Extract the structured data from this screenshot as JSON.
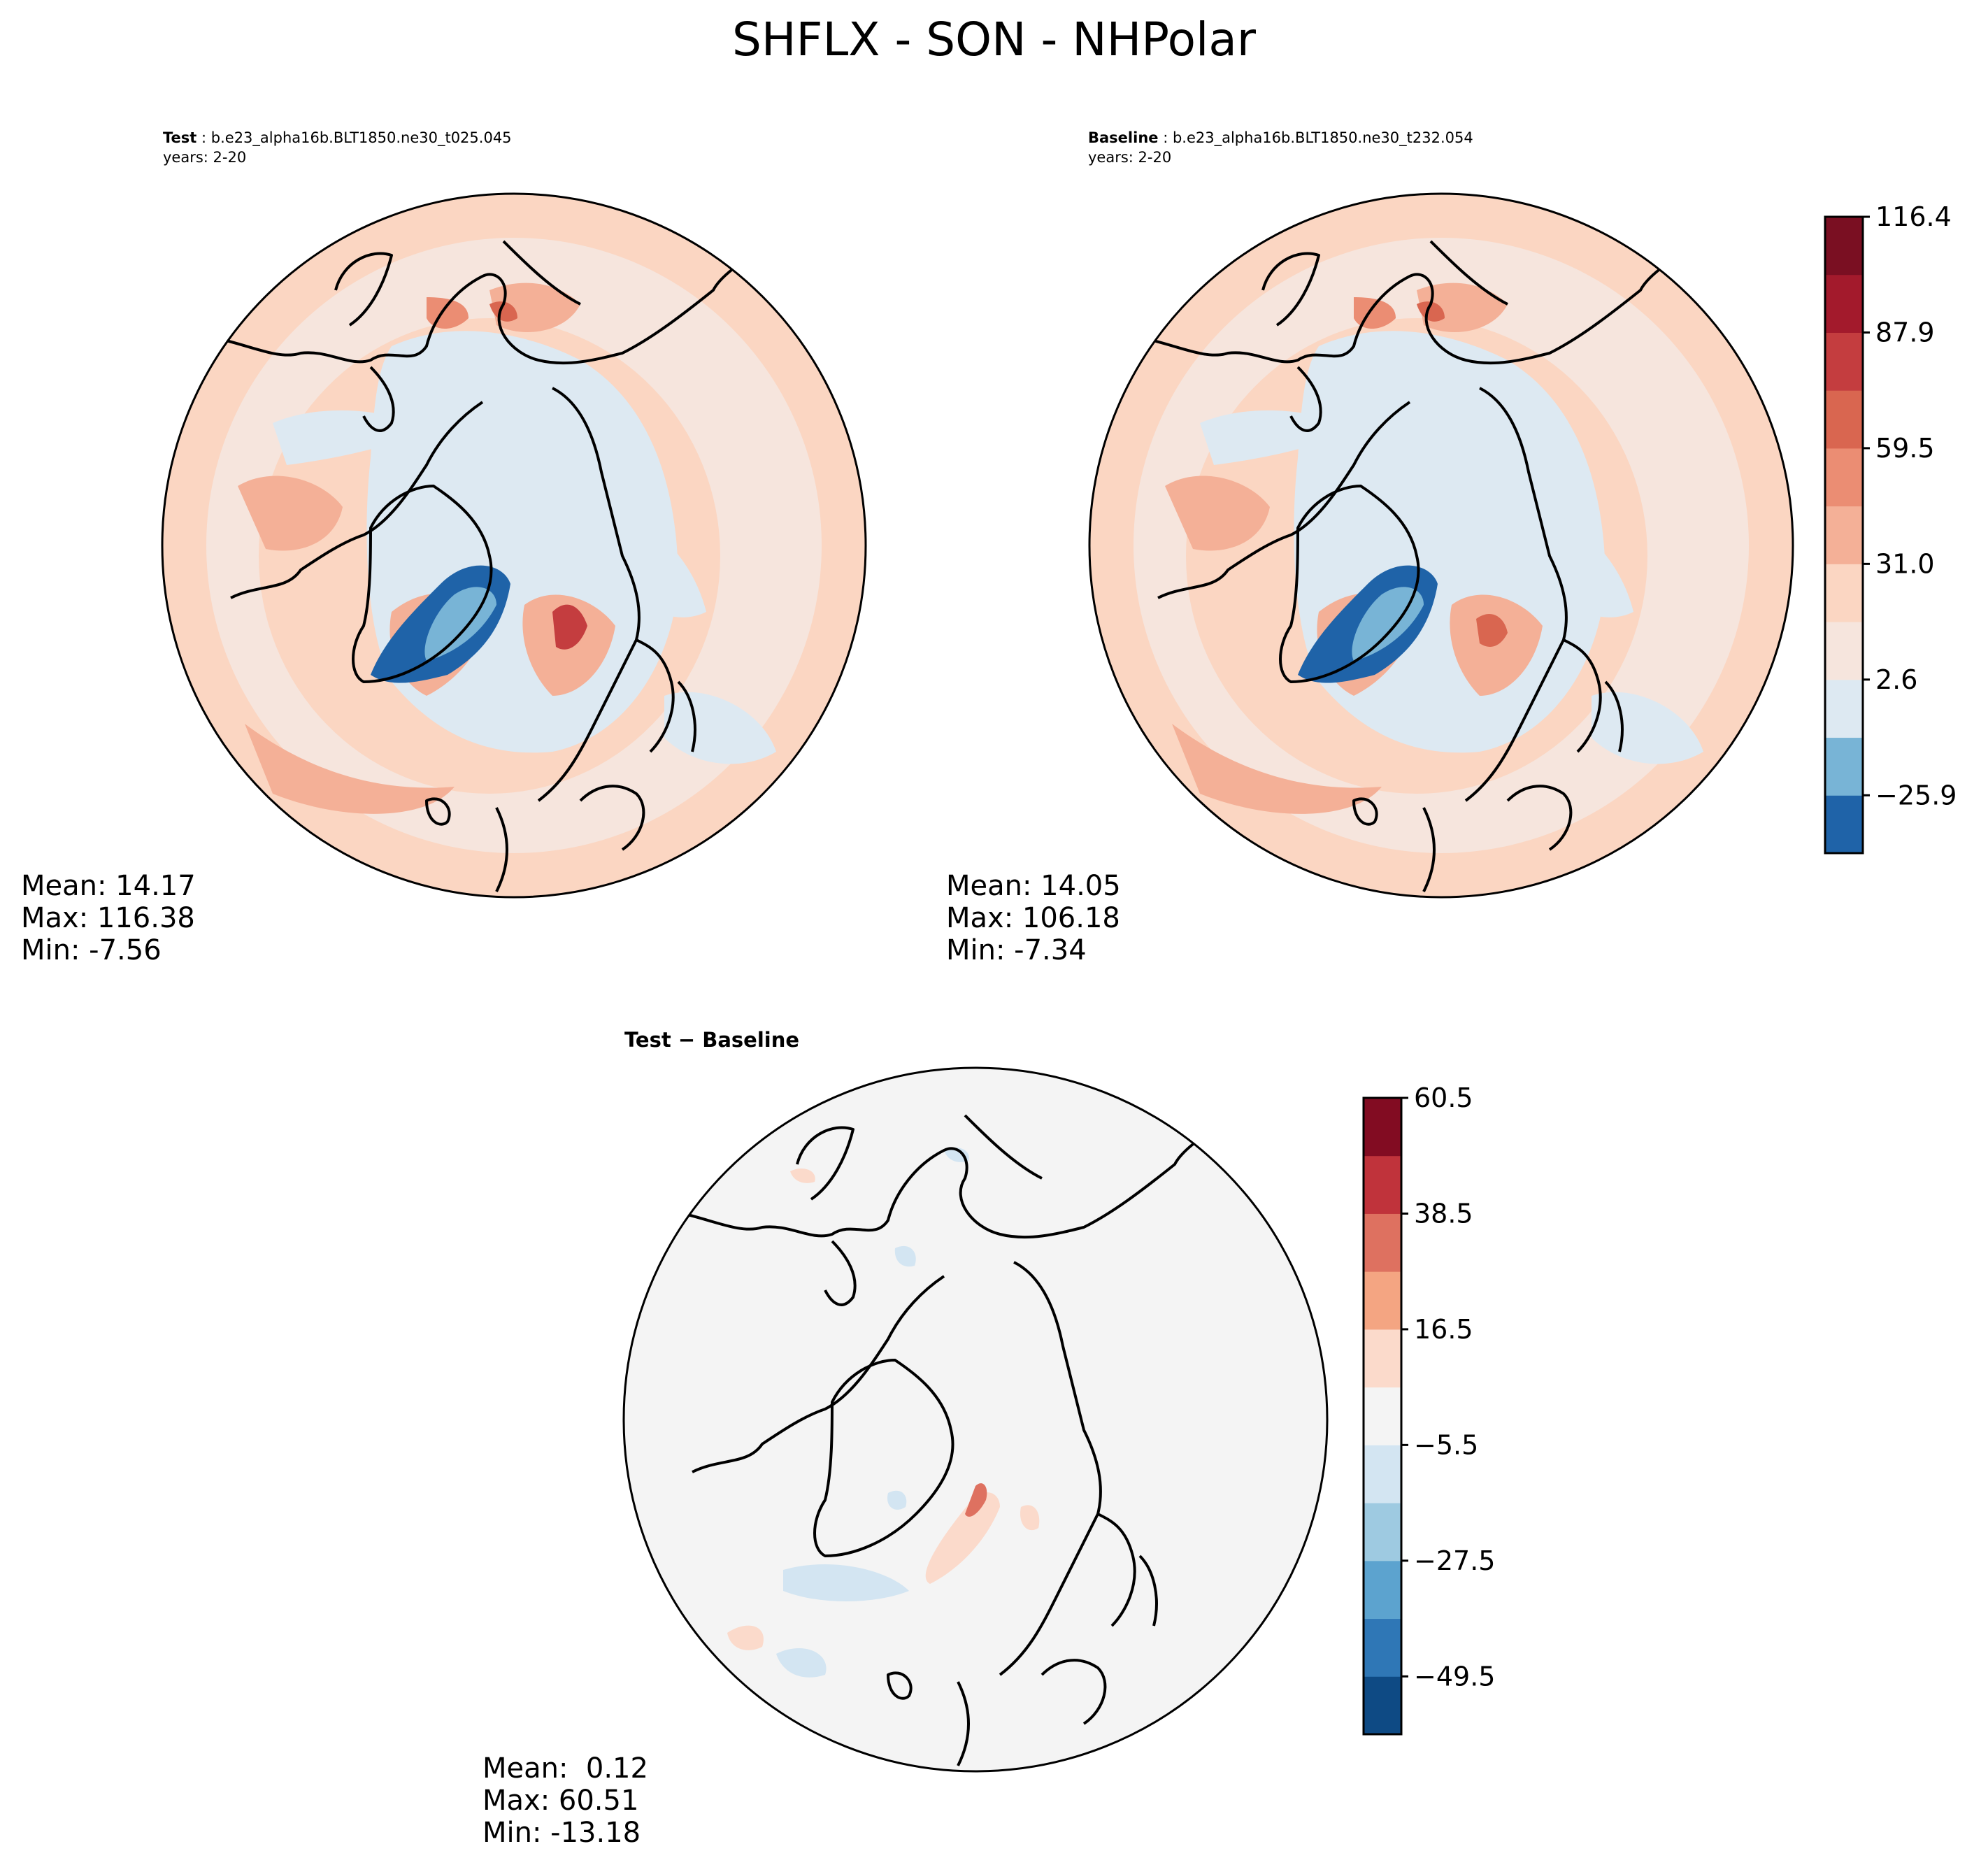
{
  "title": "SHFLX - SON - NHPolar",
  "test": {
    "label": "Test",
    "case": "b.e23_alpha16b.BLT1850.ne30_t025.045",
    "years": "years: 2-20",
    "stats": {
      "mean": "Mean: 14.17",
      "max": "Max: 116.38",
      "min": "Min: -7.56"
    }
  },
  "baseline": {
    "label": "Baseline",
    "case": "b.e23_alpha16b.BLT1850.ne30_t232.054",
    "years": "years: 2-20",
    "stats": {
      "mean": "Mean: 14.05",
      "max": "Max: 106.18",
      "min": "Min: -7.34"
    }
  },
  "diff": {
    "title": "Test − Baseline",
    "stats": {
      "mean": "Mean:  0.12",
      "max": "Max: 60.51",
      "min": "Min: -13.18"
    }
  },
  "colorbar_main": {
    "ticks": [
      "116.4",
      "87.9",
      "59.5",
      "31.0",
      "2.6",
      "−25.9"
    ],
    "colors": [
      "#1f63a8",
      "#78b4d6",
      "#dde9f2",
      "#f6e5dd",
      "#fbd6c2",
      "#f4b097",
      "#eb8d73",
      "#d96650",
      "#c43d3f",
      "#a31a2c",
      "#7a0f22"
    ]
  },
  "colorbar_diff": {
    "ticks": [
      "60.5",
      "38.5",
      "16.5",
      "−5.5",
      "−27.5",
      "−49.5"
    ],
    "colors": [
      "#0e4a84",
      "#2f77b6",
      "#5ca3cf",
      "#9ecae1",
      "#d3e5f2",
      "#f4f4f4",
      "#fbdacb",
      "#f4a582",
      "#de7160",
      "#c0333b",
      "#820c22"
    ]
  },
  "map_colors": {
    "land_line": "#000000",
    "deep_blue": "#1f63a8",
    "mid_blue": "#78b4d6",
    "pale_blue": "#dde9f2",
    "pale_red": "#f6e5dd",
    "light_red": "#fbd6c2",
    "salmon": "#f4b097",
    "red": "#d96650",
    "dark_red": "#a31a2c",
    "diff_bg": "#f4f4f4"
  }
}
